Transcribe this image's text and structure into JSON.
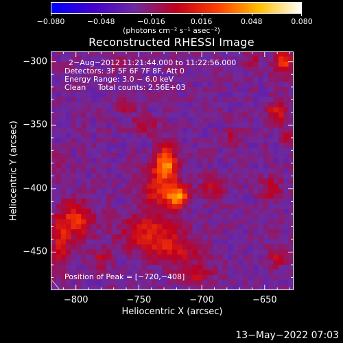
{
  "chart_data": {
    "type": "heatmap",
    "title": "Reconstructed RHESSI Image",
    "xlabel": "Heliocentric X (arcsec)",
    "ylabel": "Heliocentric Y (arcsec)",
    "xlim": [
      -820,
      -627
    ],
    "ylim": [
      -480,
      -292
    ],
    "xticks": [
      -800,
      -750,
      -700,
      -650
    ],
    "yticks": [
      -300,
      -350,
      -400,
      -450
    ],
    "xtick_labels": [
      "−800",
      "−750",
      "−700",
      "−650"
    ],
    "ytick_labels": [
      "−300",
      "−350",
      "−400",
      "−450"
    ],
    "colorbar": {
      "min": -0.08,
      "max": 0.08,
      "ticks": [
        -0.08,
        -0.048,
        -0.016,
        0.016,
        0.048,
        0.08
      ],
      "tick_labels": [
        "−0.080",
        "−0.048",
        "−0.016",
        "0.016",
        "0.048",
        "0.080"
      ],
      "unit_label": "(photons cm⁻² s⁻¹ asec⁻²)",
      "colors": [
        "#0000ff",
        "#4400cc",
        "#6d2aa0",
        "#c0001e",
        "#ff4000",
        "#ffc000",
        "#ffffff"
      ]
    },
    "legend_lines": [
      "2−Aug−2012 11:21:44.000 to 11:22:56.000",
      "Detectors: 3F 5F 6F 7F 8F, Att 0",
      "Energy Range: 3.0 − 6.0 keV",
      "Clean     Total counts: 2.56E+03"
    ],
    "peak_label": "Position of Peak = [−720,−408]",
    "peak": [
      -720,
      -408
    ],
    "background_color": "#6a2aa2",
    "sources": [
      {
        "x": -728,
        "y": -380,
        "sx": 6,
        "sy": 9,
        "amp": 0.062
      },
      {
        "x": -719,
        "y": -406,
        "sx": 6,
        "sy": 6,
        "amp": 0.068
      },
      {
        "x": -735,
        "y": -400,
        "sx": 9,
        "sy": 12,
        "amp": 0.035
      },
      {
        "x": -742,
        "y": -435,
        "sx": 16,
        "sy": 10,
        "amp": 0.035
      },
      {
        "x": -720,
        "y": -450,
        "sx": 14,
        "sy": 8,
        "amp": 0.026
      },
      {
        "x": -705,
        "y": -468,
        "sx": 10,
        "sy": 6,
        "amp": 0.024
      },
      {
        "x": -800,
        "y": -425,
        "sx": 9,
        "sy": 10,
        "amp": 0.04
      },
      {
        "x": -812,
        "y": -445,
        "sx": 5,
        "sy": 14,
        "amp": 0.03
      },
      {
        "x": -780,
        "y": -455,
        "sx": 6,
        "sy": 5,
        "amp": 0.022
      },
      {
        "x": -745,
        "y": -350,
        "sx": 8,
        "sy": 5,
        "amp": 0.02
      },
      {
        "x": -760,
        "y": -335,
        "sx": 5,
        "sy": 4,
        "amp": 0.02
      },
      {
        "x": -690,
        "y": -398,
        "sx": 7,
        "sy": 6,
        "amp": 0.025
      },
      {
        "x": -675,
        "y": -360,
        "sx": 5,
        "sy": 5,
        "amp": 0.02
      },
      {
        "x": -635,
        "y": -300,
        "sx": 5,
        "sy": 7,
        "amp": 0.045
      },
      {
        "x": -640,
        "y": -340,
        "sx": 6,
        "sy": 6,
        "amp": 0.032
      },
      {
        "x": -632,
        "y": -360,
        "sx": 4,
        "sy": 5,
        "amp": 0.03
      },
      {
        "x": -660,
        "y": -300,
        "sx": 5,
        "sy": 4,
        "amp": 0.018
      },
      {
        "x": -645,
        "y": -400,
        "sx": 6,
        "sy": 6,
        "amp": 0.026
      },
      {
        "x": -640,
        "y": -455,
        "sx": 5,
        "sy": 5,
        "amp": 0.022
      },
      {
        "x": -765,
        "y": -300,
        "sx": 6,
        "sy": 4,
        "amp": 0.014
      },
      {
        "x": -815,
        "y": -380,
        "sx": 4,
        "sy": 6,
        "amp": 0.012
      }
    ]
  },
  "footer": {
    "timestamp": "13−May−2022 07:03"
  }
}
